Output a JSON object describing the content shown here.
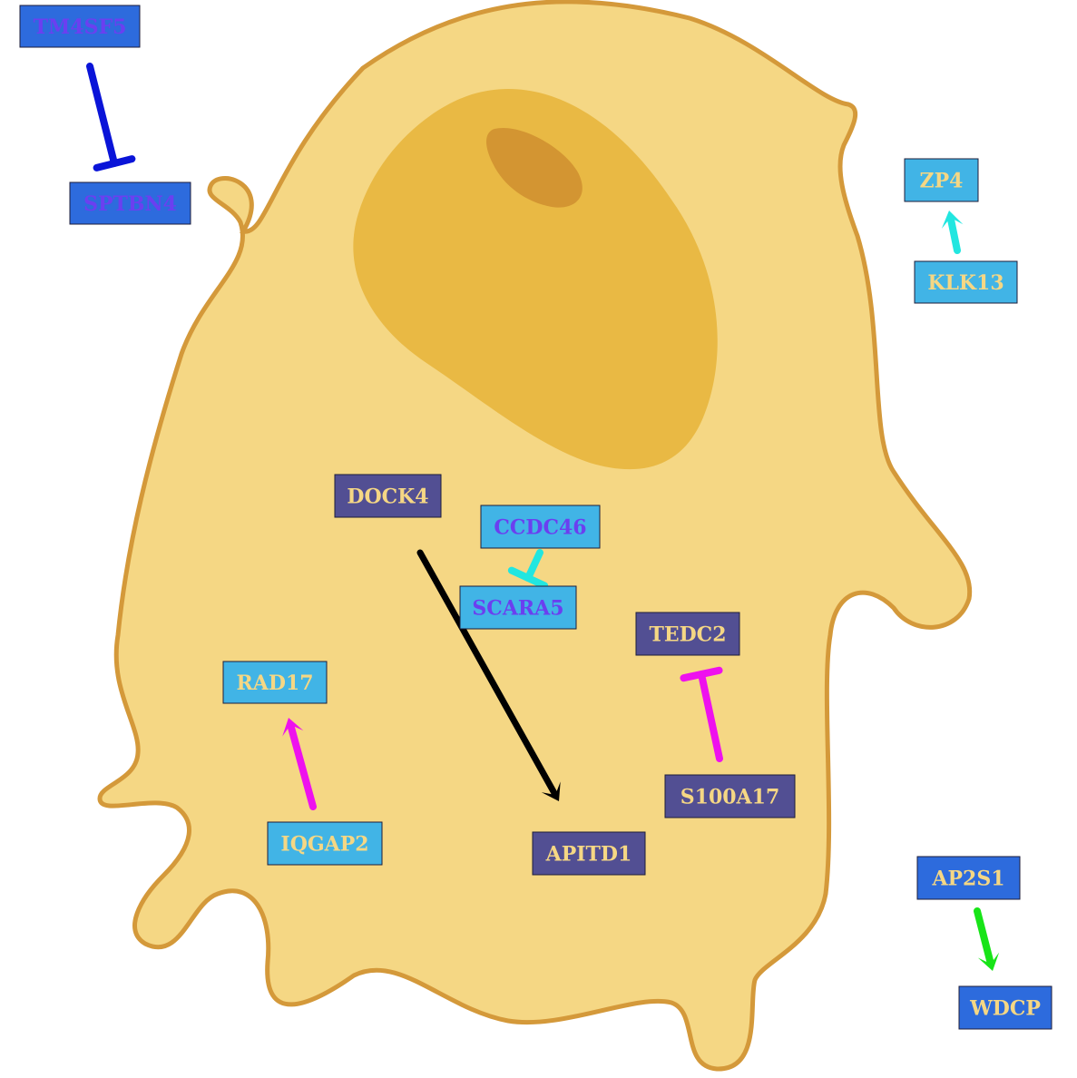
{
  "colors": {
    "cell_fill": "#f5d784",
    "cell_stroke": "#d4993a",
    "nucleus": "#e9b944",
    "nucleolus": "#d39532",
    "box_light": "#41b4e6",
    "box_dark": "#524f93",
    "box_blue": "#2d6bdd",
    "text_cream": "#f5d784",
    "text_violet": "#6b3ff0"
  },
  "nodes": [
    {
      "id": "tm4sf5",
      "label": "TM4SF5",
      "fill": "#2d6bdd",
      "text": "#6b3ff0"
    },
    {
      "id": "sptbn4",
      "label": "SPTBN4",
      "fill": "#2d6bdd",
      "text": "#6b3ff0"
    },
    {
      "id": "zp4",
      "label": "ZP4",
      "fill": "#41b4e6",
      "text": "#f5d784"
    },
    {
      "id": "klk13",
      "label": "KLK13",
      "fill": "#41b4e6",
      "text": "#f5d784"
    },
    {
      "id": "dock4",
      "label": "DOCK4",
      "fill": "#524f93",
      "text": "#f5d784"
    },
    {
      "id": "ccdc46",
      "label": "CCDC46",
      "fill": "#41b4e6",
      "text": "#6b3ff0"
    },
    {
      "id": "scara5",
      "label": "SCARA5",
      "fill": "#41b4e6",
      "text": "#6b3ff0"
    },
    {
      "id": "tedc2",
      "label": "TEDC2",
      "fill": "#524f93",
      "text": "#f5d784"
    },
    {
      "id": "rad17",
      "label": "RAD17",
      "fill": "#41b4e6",
      "text": "#f5d784"
    },
    {
      "id": "s100a17",
      "label": "S100A17",
      "fill": "#524f93",
      "text": "#f5d784"
    },
    {
      "id": "iqgap2",
      "label": "IQGAP2",
      "fill": "#41b4e6",
      "text": "#f5d784"
    },
    {
      "id": "apitd1",
      "label": "APITD1",
      "fill": "#524f93",
      "text": "#f5d784"
    },
    {
      "id": "ap2s1",
      "label": "AP2S1",
      "fill": "#2d6bdd",
      "text": "#f5d784"
    },
    {
      "id": "wdcp",
      "label": "WDCP",
      "fill": "#2d6bdd",
      "text": "#f5d784"
    }
  ],
  "edges": [
    {
      "from": "tm4sf5",
      "to": "sptbn4",
      "type": "inhibition",
      "color": "#0a14d8"
    },
    {
      "from": "klk13",
      "to": "zp4",
      "type": "activation",
      "color": "#22e6e0"
    },
    {
      "from": "dock4",
      "to": "apitd1",
      "type": "activation",
      "color": "#000000"
    },
    {
      "from": "ccdc46",
      "to": "scara5",
      "type": "inhibition",
      "color": "#22e6e0"
    },
    {
      "from": "s100a17",
      "to": "tedc2",
      "type": "inhibition",
      "color": "#ee11ee"
    },
    {
      "from": "iqgap2",
      "to": "rad17",
      "type": "activation",
      "color": "#ee11ee"
    },
    {
      "from": "ap2s1",
      "to": "wdcp",
      "type": "activation",
      "color": "#18e418"
    }
  ]
}
